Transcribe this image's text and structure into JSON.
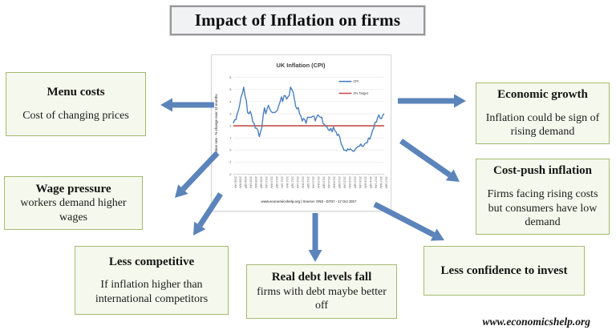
{
  "title": "Impact of Inflation on firms",
  "credit": "www.economicshelp.org",
  "colors": {
    "arrow": "#5b84bb",
    "box_border": "#a3bb72",
    "box_bg": "#f5f8ec",
    "cpi_line": "#4a7ebb",
    "target_line": "#c0504d"
  },
  "boxes": {
    "menu_costs": {
      "heading": "Menu costs",
      "body": "Cost of changing prices"
    },
    "wage_pressure": {
      "heading": "Wage pressure",
      "body": "workers demand higher wages"
    },
    "less_competitive": {
      "heading": "Less competitive",
      "body": "If inflation higher than international competitors"
    },
    "real_debt": {
      "heading": "Real debt levels fall",
      "body": "firms with debt maybe better off"
    },
    "less_confidence": {
      "heading": "Less confidence to invest",
      "body": ""
    },
    "economic_growth": {
      "heading": "Economic growth",
      "body": "Inflation could be sign of rising demand"
    },
    "cost_push": {
      "heading": "Cost-push inflation",
      "body": "Firms facing rising costs but consumers have low demand"
    }
  },
  "chart_data": {
    "type": "line",
    "title": "UK Inflation (CPI)",
    "ylabel": "Inflation rate - % change over 12 months",
    "caption": "www.economicshelp.org | Source: ONS - D7G7 - 17 Oct 2017",
    "ylim": [
      -2,
      6
    ],
    "yticks": [
      6,
      5,
      4,
      3,
      2,
      1,
      0,
      -1,
      -2
    ],
    "legend_position": "top-right",
    "grid": true,
    "x_tick_labels": [
      "2008 JAN",
      "2008 MAY",
      "2008 SEP",
      "2009 JAN",
      "2009 MAY",
      "2009 SEP",
      "2010 JAN",
      "2010 MAY",
      "2010 SEP",
      "2011 JAN",
      "2011 MAY",
      "2011 SEP",
      "2012 JAN",
      "2012 MAY",
      "2012 SEP",
      "2013 JAN",
      "2013 MAY",
      "2013 SEP",
      "2014 JAN",
      "2014 MAY",
      "2014 SEP",
      "2015 JAN",
      "2015 MAY",
      "2015 SEP",
      "2016 JAN",
      "2016 MAY",
      "2016 SEP",
      "2017 JAN",
      "2017 MAY",
      "2017 SEP"
    ],
    "series": [
      {
        "name": "CPI",
        "color": "#4a7ebb",
        "values": [
          2.2,
          2.5,
          2.5,
          3.0,
          3.3,
          3.8,
          4.4,
          4.7,
          5.2,
          4.5,
          4.1,
          3.1,
          3.0,
          3.2,
          2.9,
          2.3,
          2.2,
          1.8,
          1.8,
          1.6,
          1.1,
          1.5,
          1.9,
          2.9,
          3.5,
          3.0,
          3.4,
          3.7,
          3.4,
          3.2,
          3.1,
          3.1,
          3.1,
          3.2,
          3.3,
          3.7,
          4.0,
          4.4,
          4.0,
          4.5,
          4.5,
          4.2,
          4.4,
          4.5,
          5.2,
          5.0,
          4.8,
          4.2,
          3.6,
          3.4,
          3.5,
          3.0,
          2.8,
          2.4,
          2.6,
          2.5,
          2.2,
          2.7,
          2.7,
          2.7,
          2.7,
          2.8,
          2.8,
          2.4,
          2.7,
          2.9,
          2.8,
          2.7,
          2.7,
          2.2,
          2.1,
          2.0,
          1.9,
          1.7,
          1.6,
          1.8,
          1.5,
          1.9,
          1.6,
          1.5,
          1.2,
          1.3,
          1.0,
          0.5,
          0.3,
          0.0,
          0.0,
          -0.1,
          0.1,
          0.0,
          0.1,
          0.0,
          -0.1,
          -0.1,
          0.1,
          0.2,
          0.3,
          0.3,
          0.5,
          0.3,
          0.3,
          0.5,
          0.6,
          0.6,
          1.0,
          0.9,
          1.2,
          1.6,
          1.8,
          2.3,
          2.3,
          2.7,
          2.9,
          2.6,
          2.6,
          2.9,
          3.0
        ]
      },
      {
        "name": "2% Target",
        "color": "#c0504d",
        "constant": 2
      }
    ]
  }
}
